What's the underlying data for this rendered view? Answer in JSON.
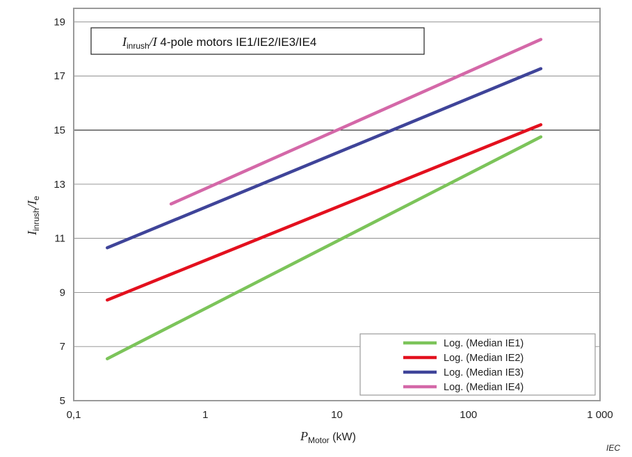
{
  "chart_data": {
    "type": "line",
    "title": {
      "num_symbol": "I",
      "num_sub": "inrush",
      "sep": "/",
      "den_symbol": "I",
      "rest": " 4-pole motors IE1/IE2/IE3/IE4"
    },
    "xlabel": {
      "symbol": "P",
      "sub": "Motor",
      "unit": "  (kW)"
    },
    "ylabel": {
      "symbol": "I",
      "sub": "inrush",
      "sep": "/",
      "den_symbol": "I",
      "den_sub": "e"
    },
    "x_scale": "log",
    "xlim": [
      0.1,
      1000
    ],
    "ylim": [
      5,
      19.5
    ],
    "x_ticks": [
      {
        "value": 0.1,
        "label": "0,1"
      },
      {
        "value": 1,
        "label": "1"
      },
      {
        "value": 10,
        "label": "10"
      },
      {
        "value": 100,
        "label": "100"
      },
      {
        "value": 1000,
        "label": "1 000"
      }
    ],
    "y_ticks": [
      {
        "value": 5,
        "label": "5"
      },
      {
        "value": 7,
        "label": "7"
      },
      {
        "value": 9,
        "label": "9"
      },
      {
        "value": 11,
        "label": "11"
      },
      {
        "value": 13,
        "label": "13"
      },
      {
        "value": 15,
        "label": "15"
      },
      {
        "value": 17,
        "label": "17"
      },
      {
        "value": 19,
        "label": "19"
      }
    ],
    "grid": "horizontal",
    "legend_position": "bottom-right",
    "series": [
      {
        "name": "Log. (Median IE1)",
        "color": "#7cc45a",
        "x": [
          0.18,
          355
        ],
        "y": [
          6.55,
          14.75
        ]
      },
      {
        "name": "Log. (Median IE2)",
        "color": "#e3101e",
        "x": [
          0.18,
          355
        ],
        "y": [
          8.72,
          15.2
        ]
      },
      {
        "name": "Log. (Median IE3)",
        "color": "#3f4499",
        "x": [
          0.18,
          355
        ],
        "y": [
          10.65,
          17.27
        ]
      },
      {
        "name": "Log. (Median IE4)",
        "color": "#d468a8",
        "x": [
          0.55,
          355
        ],
        "y": [
          12.27,
          18.35
        ]
      }
    ]
  },
  "source_tag": "IEC"
}
